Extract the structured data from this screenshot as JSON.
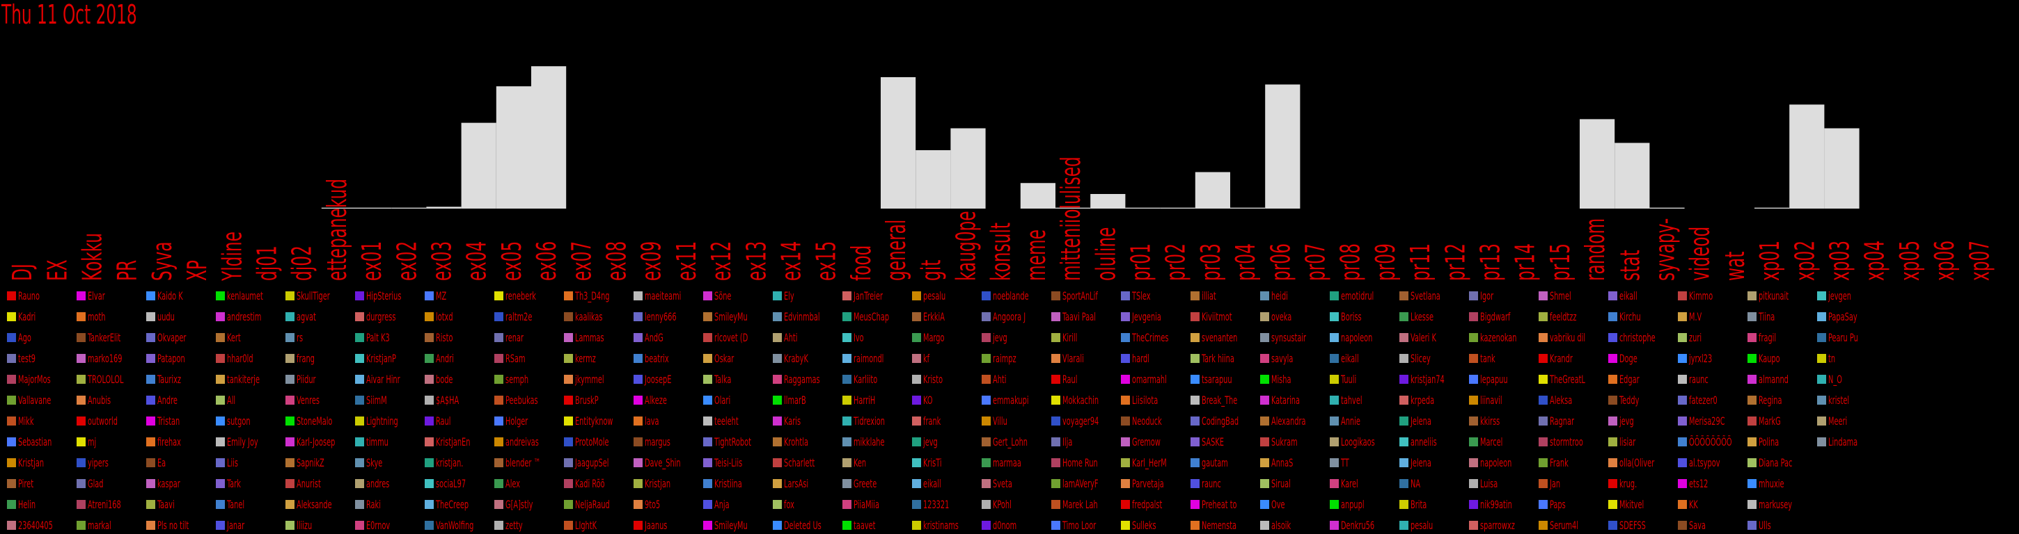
{
  "date_label": "Thu 11 Oct 2018",
  "chart_data": {
    "type": "bar",
    "categories": [
      "DJ",
      "EX",
      "Kokku",
      "PR",
      "Syva",
      "XP",
      "Yldine",
      "dj01",
      "dj02",
      "ettepanekud",
      "ex01",
      "ex02",
      "ex03",
      "ex04",
      "ex05",
      "ex06",
      "ex07",
      "ex08",
      "ex09",
      "ex11",
      "ex12",
      "ex13",
      "ex14",
      "ex15",
      "food",
      "general",
      "git",
      "kaug0pe",
      "konsult",
      "meme",
      "mitteniiolulised",
      "oluline",
      "pr01",
      "pr02",
      "pr03",
      "pr04",
      "pr06",
      "pr07",
      "pr08",
      "pr09",
      "pr11",
      "pr12",
      "pr13",
      "pr14",
      "pr15",
      "random",
      "stat",
      "syvapy-",
      "videod",
      "wat",
      "xp01",
      "xp02",
      "xp03",
      "xp04",
      "xp05",
      "xp06",
      "xp07"
    ],
    "values": [
      0,
      0,
      0,
      0,
      0,
      0,
      0,
      0,
      0,
      0.5,
      0.5,
      0.5,
      1,
      47,
      67,
      78,
      0,
      0,
      0,
      0,
      0,
      0,
      0,
      0,
      0,
      72,
      32,
      44,
      0,
      14,
      0.5,
      8,
      0.5,
      0.5,
      20,
      0.5,
      68,
      0,
      0,
      0,
      0,
      0,
      0,
      0,
      0,
      49,
      36,
      0.5,
      0,
      0,
      0.5,
      57,
      44,
      0,
      0,
      0,
      0
    ],
    "ylim": [
      0,
      80
    ],
    "colors": {
      "bars": "#dddddd",
      "labels": "#e00000",
      "background": "#000000"
    }
  },
  "legend": {
    "columns": 29,
    "rows": 12,
    "colors": [
      "#e00000",
      "#e000e0",
      "#3a8cff",
      "#00e000",
      "#cccc00",
      "#6d1ae0",
      "#4a78ff",
      "#e0e000",
      "#e07020",
      "#bbbbbb",
      "#cf2fcf",
      "#30b0b0",
      "#d06060",
      "#cc8800",
      "#3050c8",
      "#8b4b22",
      "#6868c8",
      "#b07030",
      "#6090b0",
      "#20a080",
      "#a06030",
      "#7070b0",
      "#c060c0",
      "#8060d0",
      "#c04040",
      "#b0a070",
      "#40c0c0",
      "#3a9a50",
      "#b04060",
      "#a0b040",
      "#4080d0",
      "#d0a040",
      "#8090a0",
      "#60b0e0",
      "#c07080",
      "#70a030",
      "#e08040",
      "#5050e0",
      "#a0c060",
      "#d04080",
      "#3070a0",
      "#b0b0b0",
      "#c05020"
    ],
    "entries": [
      "Rauno",
      "Kadri",
      "Ago",
      "test9",
      "MajorMos",
      "Vallavane",
      "Mikk",
      "Sebastian",
      "Kristjan",
      "Piret",
      "Helin",
      "23640405",
      "Elvar",
      "moth",
      "TankerElit",
      "marko169",
      "TROLOLOL",
      "Anubis",
      "outworld",
      "mj",
      "yipers",
      "Glad",
      "Atreni168",
      "markal",
      "Kaido K",
      "uudu",
      "Okvaper",
      "Patapon",
      "Taurixz",
      "Andre",
      "Tristan",
      "firehax",
      "Ea",
      "kaspar",
      "Taavi",
      "Pls no tilt",
      "kenlaumet",
      "andrestim",
      "Kert",
      "hhar0ld",
      "tankiterje",
      "All",
      "sutgon",
      "Emily Joy",
      "Liis",
      "Tark",
      "Tanel",
      "Janar",
      "SkullTiger",
      "agvat",
      "rs",
      "frang",
      "Piidur",
      "Venres",
      "StoneMalo",
      "Karl-Joosep",
      "SapnikZ",
      "Anurist",
      "Aleksande",
      "lliizu",
      "HipSterius",
      "durgress",
      "Palt K3",
      "KristjanP",
      "Aivar Hinr",
      "SiimM",
      "Lightning",
      "timmu",
      "Skye",
      "andres",
      "Raki",
      "E0rnov",
      "MZ",
      "lotxd",
      "Risto",
      "Andri",
      "bode",
      "$A$HA",
      "Raul",
      "KristjanEn",
      "kristjan.",
      "sociaL97",
      "TheCreep",
      "VanWolfing",
      "reneberk",
      "raltm2e",
      "renar",
      "RSam",
      "semph",
      "Peebukas",
      "Holger",
      "andreivas",
      "blender ™",
      "Alex",
      "G[A]stly",
      "zetty",
      "Th3_D4ng",
      "kaalikas",
      "Lammas",
      "kermz",
      "jkymmel",
      "BruskP",
      "Entityknow",
      "ProtoMole",
      "JaagupSel",
      "Kadi Rõõ",
      "NeljaRaud",
      "LIghtK",
      "maeiteami",
      "lenny666",
      "AndG",
      "beatrix",
      "JoosepE",
      "Alkeze",
      "lava",
      "margus",
      "Dave_Shin",
      "Kristjan",
      "9to5",
      "Jaanus",
      "Söne",
      "SmileyMu",
      "rlcovet (D",
      "Oskar",
      "Talka",
      "Olari",
      "teeleht",
      "TightRobot",
      "Teisi-Liis",
      "Kristiina",
      "Anja",
      "SmileyMu",
      "Ely",
      "Edvinmbal",
      "Ahti",
      "KrabyK",
      "Raggamas",
      "llmarB",
      "Karis",
      "Krohtla",
      "Scharlett",
      "LarsAsi",
      "fox",
      "Deleted Us",
      "JanTreier",
      "MeusChap",
      "Ivo",
      "raimondl",
      "Karliito",
      "HarriH",
      "Tidrexion",
      "mikklahe",
      "Ken",
      "Greete",
      "PiiaMiia",
      "taavet",
      "pesalu",
      "ErkkiA",
      "Margo",
      "kf",
      "Kristo",
      "KO",
      "frank",
      "jevg",
      "KrisTi",
      "eikall",
      "123321",
      "kristinams",
      "noeblande",
      "Angoora J",
      "jevg",
      "raimpz",
      "Ahti",
      "emmakupi",
      "Villu",
      "Gert_Lohn",
      "marmaa",
      "Sveta",
      "KPohl",
      "d0nom",
      "SportAnLif",
      "Taavi Paal",
      "Kirill",
      "Vlarali",
      "Raul",
      "Mokkachin",
      "voyager94",
      "Ilja",
      "Home Run",
      "lamAVeryF",
      "Marek Lah",
      "Timo Loor",
      "TSlex",
      "Jevgenia",
      "TheCrimes",
      "hardl",
      "omarmahl",
      "Liisilota",
      "Neoduck",
      "Gremow",
      "Karl_HerM",
      "Parvetaja",
      "fredpalst",
      "Sulleks",
      "illiat",
      "Kiviitmot",
      "svenanten",
      "Tark hiina",
      "tsarapuu",
      "Break_The",
      "CodingBad",
      "SASKE",
      "gautam",
      "raunc",
      "Preheat to",
      "Nemensta",
      "heidi",
      "oveka",
      "synsustair",
      "savyla",
      "Misha",
      "Katarina",
      "Alexandra",
      "Sukram",
      "AnnaS",
      "Sirual",
      "Ove",
      "alsoik",
      "emotidrul",
      "Boriss",
      "napoleon",
      "eikall",
      "Tuuli",
      "tahvel",
      "Annie",
      "Loogikaos",
      "TT",
      "Karel",
      "anpupl",
      "Denkru56",
      "Svetlana",
      "Lkesse",
      "Valeri K",
      "Slicey",
      "kristjan74",
      "krpeda",
      "Jelena",
      "anneliis",
      "Jelena",
      "NA",
      "Brita",
      "pesalu",
      "Igor",
      "Bigdwarf",
      "kazenokan",
      "tank",
      "lepapuu",
      "liinavil",
      "kkirss",
      "Marcel",
      "napoleon",
      "Luisa",
      "nik99atin",
      "sparrowxz",
      "Shmel",
      "feeldtzz",
      "vabriku dil",
      "Krandr",
      "TheGreatL",
      "Aleksa",
      "Ragnar",
      "stormtroo",
      "Frank",
      "Jan",
      "Paps",
      "Serum4l",
      "eikall",
      "Kirchu",
      "christophe",
      "Doge",
      "Edgar",
      "Teddy",
      "jevg",
      "lisiar",
      "olla(Oliver",
      "krug.",
      "Mkitvel",
      "SDEFSS",
      "Kimmo",
      "M.V",
      "zuri",
      "jyrxl23",
      "raunc",
      "fatezer0",
      "Merisa29C",
      "ÕÕÕÕÕÕÕÕ",
      "al.tsypov",
      "ets12",
      "KK",
      "Sava",
      "pitkunait",
      "Tiina",
      "fragil",
      "Kaupo",
      "almannd",
      "Regina",
      "MarkG",
      "Polina",
      "Diana Pac",
      "mhuxie",
      "markusey",
      "Ulls",
      "jevgen",
      "PapaSay",
      "Pearu Pu",
      "tn",
      "N_O",
      "kristel",
      "Meeri",
      "Lindama"
    ]
  }
}
